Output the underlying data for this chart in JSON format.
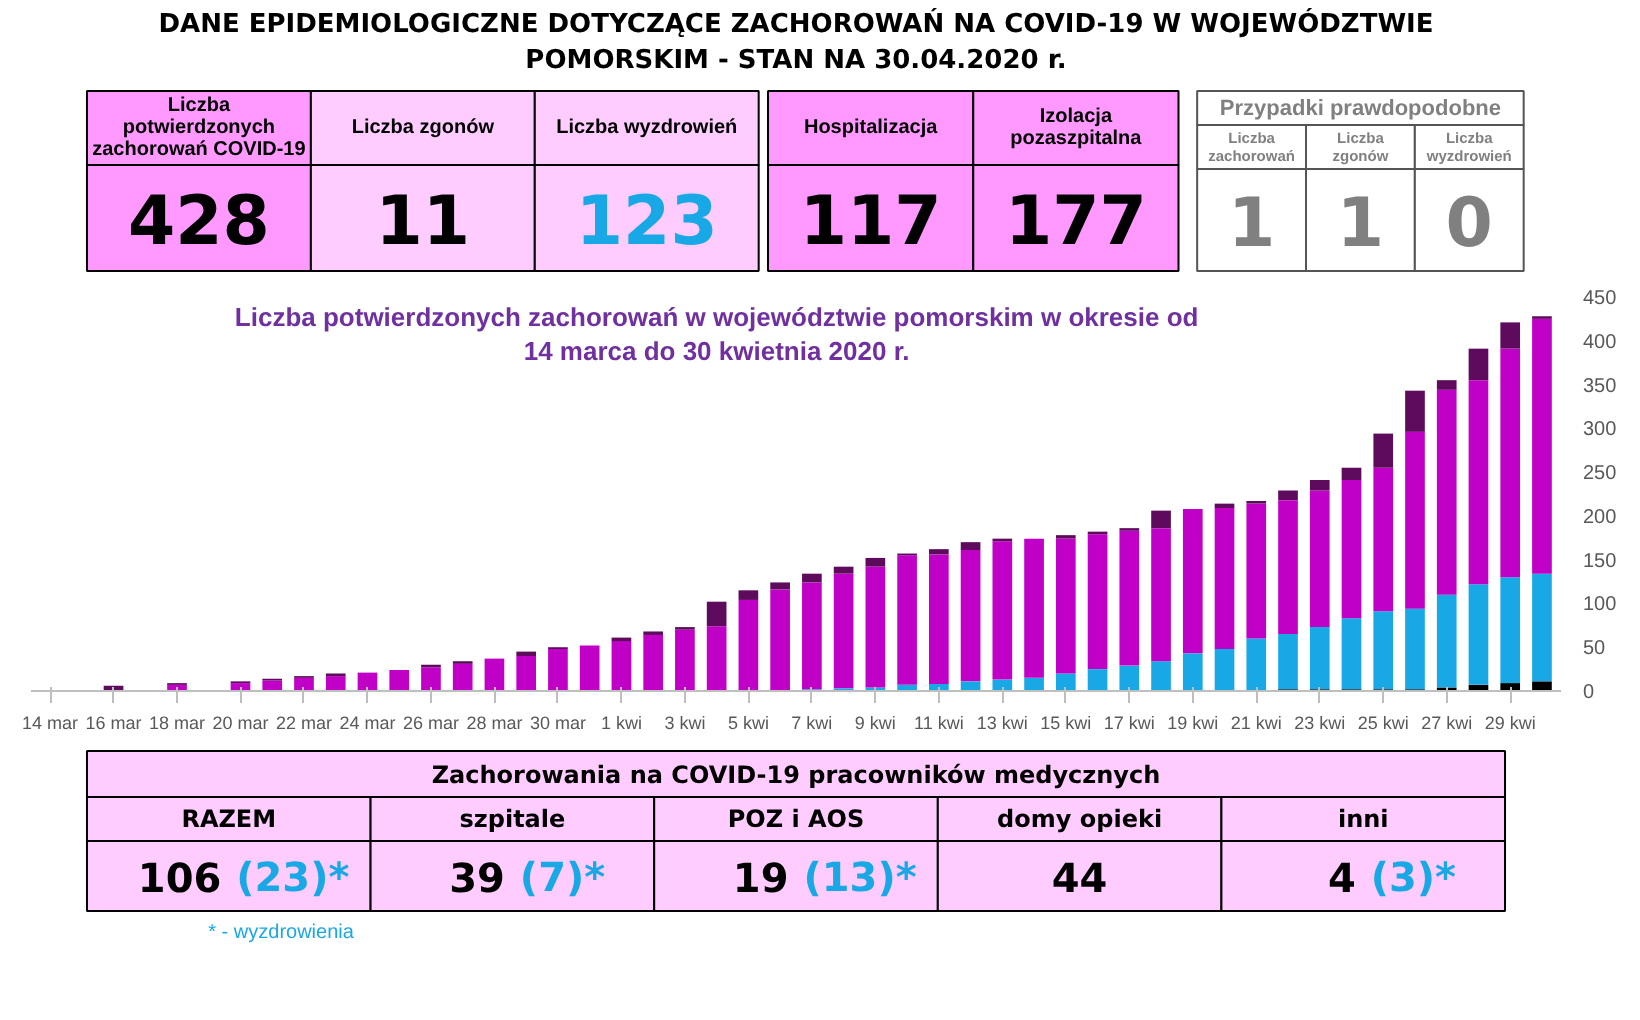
{
  "chart_data": [
    {
      "type": "other",
      "title": "DANE EPIDEMIOLOGICZNE DOTYCZĄCE ZACHOROWAŃ NA COVID-19 W WOJEWÓDZTWIE POMORSKIM - STAN NA 30.04.2020 r.",
      "annotations": [
        "Liczba potwierdzonych zachorowań COVID-19",
        "428",
        "Liczba zgonów",
        "11",
        "Liczba wyzdrowień",
        "123",
        "Hospitalizacja",
        "117",
        "Izolacja pozaszpitalna",
        "177",
        "Przypadki prawdopodobne",
        "Liczba zachorowań",
        "1",
        "Liczba zgonów",
        "1",
        "Liczba wyzdrowień",
        "0"
      ]
    },
    {
      "type": "bar",
      "stacked": true,
      "title": "Liczba potwierdzonych zachorowań w województwie pomorskim w okresie od 14 marca do 30 kwietnia 2020 r.",
      "categories": [
        "14 mar",
        null,
        "16 mar",
        null,
        "18 mar",
        null,
        "20 mar",
        null,
        "22 mar",
        null,
        "24 mar",
        null,
        "26 mar",
        null,
        "28 mar",
        null,
        "30 mar",
        null,
        "1 kwi",
        null,
        "3 kwi",
        null,
        "5 kwi",
        null,
        "7 kwi",
        null,
        "9 kwi",
        null,
        "11 kwi",
        null,
        "13 kwi",
        null,
        "15 kwi",
        null,
        "17 kwi",
        null,
        "19 kwi",
        null,
        "21 kwi",
        null,
        "23 kwi",
        null,
        "25 kwi",
        null,
        "27 kwi",
        null,
        "29 kwi",
        null
      ],
      "ylim": [
        0,
        450
      ],
      "yticks": [
        0,
        50,
        100,
        150,
        200,
        250,
        300,
        350,
        400,
        450
      ],
      "series": [
        {
          "color": "#000000",
          "values": [
            0,
            0,
            0,
            0,
            0,
            0,
            0,
            0,
            0,
            0,
            0,
            0,
            0,
            0,
            0,
            0,
            0,
            0,
            0,
            0,
            0,
            0,
            0,
            0,
            0,
            0,
            0,
            0,
            0,
            0,
            0,
            0,
            0,
            0,
            0,
            0,
            0,
            0,
            0,
            2,
            2,
            2,
            2,
            2,
            4,
            7,
            9,
            11
          ]
        },
        {
          "color": "#19a8e6",
          "values": [
            0,
            0,
            0,
            0,
            0,
            0,
            0,
            0,
            0,
            0,
            0,
            0,
            0,
            0,
            0,
            0,
            0,
            0,
            0,
            0,
            0,
            1,
            1,
            1,
            2,
            3,
            4,
            7,
            8,
            11,
            13,
            15,
            20,
            25,
            29,
            34,
            43,
            48,
            60,
            63,
            71,
            81,
            89,
            92,
            106,
            115,
            121,
            123
          ]
        },
        {
          "color": "#c000c6",
          "values": [
            0,
            0,
            0,
            0,
            7,
            0,
            9,
            12,
            15,
            17,
            21,
            24,
            27,
            31,
            37,
            40,
            48,
            52,
            57,
            64,
            70,
            73,
            103,
            115,
            122,
            131,
            138,
            148,
            148,
            150,
            158,
            159,
            154,
            154,
            154,
            152,
            165,
            161,
            154,
            153,
            156,
            158,
            164,
            202,
            234,
            233,
            261,
            291
          ]
        },
        {
          "color": "#5e0b5e",
          "values": [
            null,
            0,
            6,
            0,
            2,
            0,
            2,
            2,
            2,
            3,
            0,
            0,
            3,
            3,
            0,
            5,
            2,
            0,
            4,
            4,
            3,
            28,
            11,
            8,
            10,
            8,
            10,
            2,
            6,
            9,
            3,
            0,
            4,
            3,
            3,
            20,
            0,
            5,
            3,
            11,
            12,
            14,
            39,
            47,
            11,
            36,
            30,
            3
          ]
        }
      ]
    },
    {
      "type": "other",
      "title": "Zachorowania na COVID-19 pracowników medycznych",
      "annotations": [
        "RAZEM",
        "106 (23)*",
        "szpitale",
        "39 (7)*",
        "POZ i AOS",
        "19 (13)*",
        "domy opieki",
        "44",
        "inni",
        "4 (3)*",
        "*  - wyzdrowienia"
      ]
    }
  ]
}
